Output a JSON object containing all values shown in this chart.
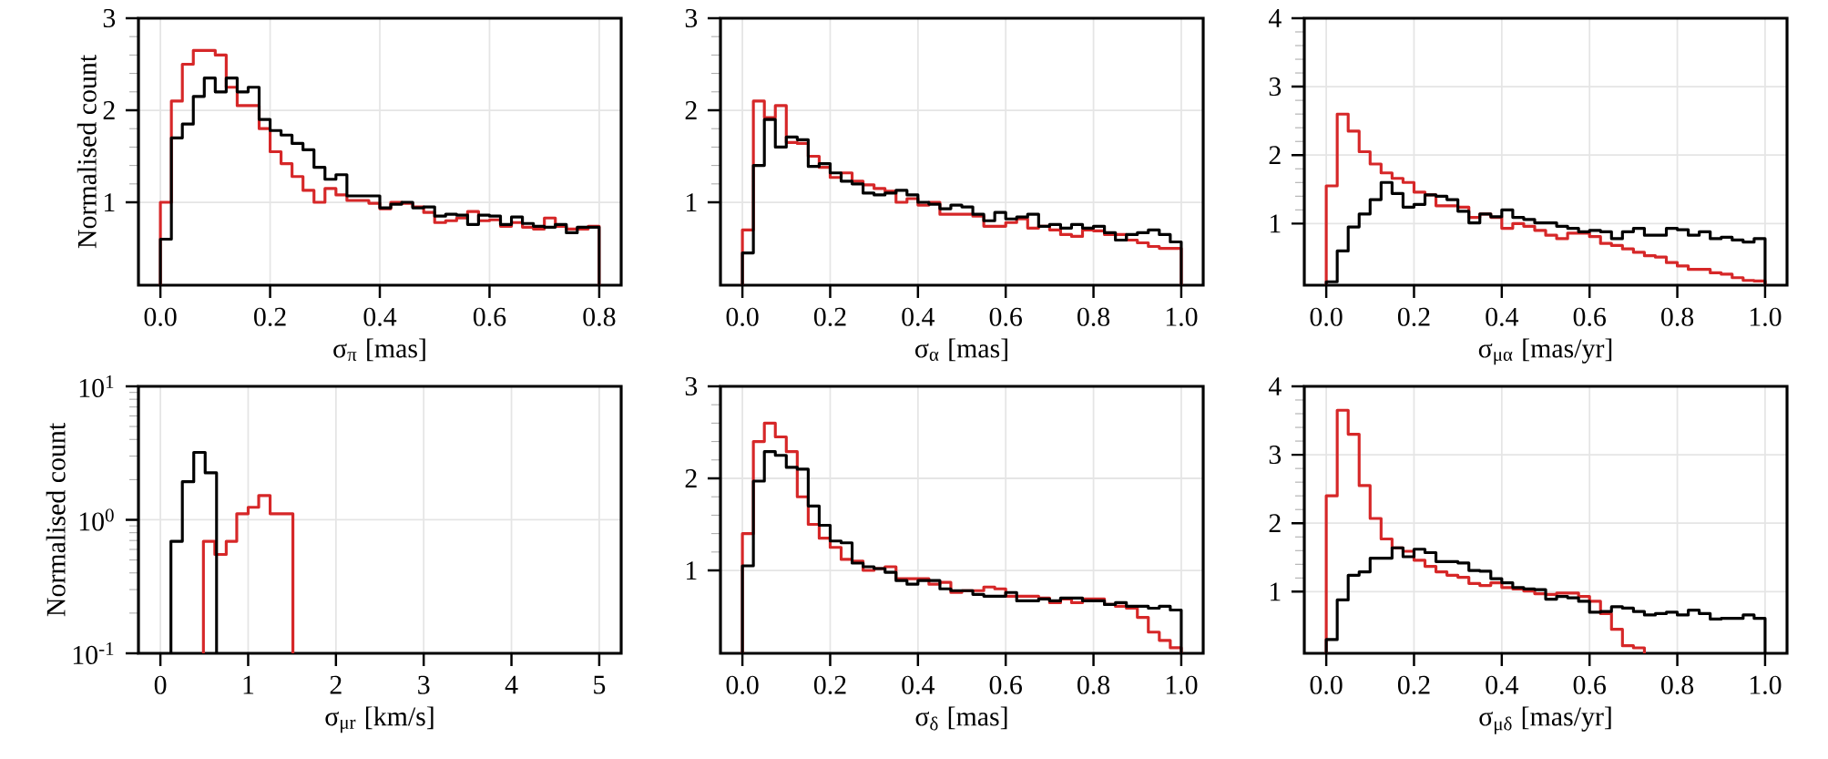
{
  "chart_data": [
    {
      "type": "histogram",
      "ylabel": "Normalised count",
      "xlabel": "σ$_{π}$ [mas]",
      "grid": true,
      "xlim": [
        -0.04,
        0.84
      ],
      "ylim": [
        0.1,
        3
      ],
      "xticks": [
        {
          "value": 0,
          "label": "0.0"
        },
        {
          "value": 0.2,
          "label": "0.2"
        },
        {
          "value": 0.4,
          "label": "0.4"
        },
        {
          "value": 0.6,
          "label": "0.6"
        },
        {
          "value": 0.8,
          "label": "0.8"
        }
      ],
      "yticks": [
        1,
        2,
        3
      ],
      "bins": [
        0,
        0.02,
        0.04,
        0.06,
        0.08,
        0.1,
        0.12,
        0.14,
        0.16,
        0.18,
        0.2,
        0.22,
        0.24,
        0.26,
        0.28,
        0.3,
        0.32,
        0.34,
        0.36,
        0.38,
        0.4,
        0.42,
        0.44,
        0.46,
        0.48,
        0.5,
        0.52,
        0.54,
        0.56,
        0.58,
        0.6,
        0.62,
        0.64,
        0.66,
        0.68,
        0.7,
        0.72,
        0.74,
        0.76,
        0.78,
        0.8
      ],
      "series": [
        {
          "color": "#d62728",
          "values": [
            1.0,
            2.1,
            2.5,
            2.65,
            2.65,
            2.6,
            2.25,
            2.05,
            2.05,
            1.8,
            1.55,
            1.42,
            1.28,
            1.13,
            1.0,
            1.15,
            1.08,
            1.02,
            1.02,
            0.99,
            0.93,
            1.0,
            0.99,
            0.95,
            0.89,
            0.78,
            0.8,
            0.83,
            0.9,
            0.8,
            0.81,
            0.74,
            0.78,
            0.73,
            0.71,
            0.83,
            0.74,
            0.71,
            0.71,
            0.74
          ]
        },
        {
          "color": "#000000",
          "values": [
            0.6,
            1.7,
            1.85,
            2.15,
            2.35,
            2.2,
            2.35,
            2.2,
            2.25,
            1.9,
            1.78,
            1.73,
            1.64,
            1.57,
            1.38,
            1.25,
            1.3,
            1.07,
            1.07,
            1.07,
            0.94,
            0.98,
            1.0,
            0.94,
            0.95,
            0.85,
            0.87,
            0.86,
            0.76,
            0.86,
            0.85,
            0.76,
            0.84,
            0.77,
            0.74,
            0.73,
            0.76,
            0.67,
            0.73,
            0.73
          ]
        }
      ]
    },
    {
      "type": "histogram",
      "xlabel": "σ$_{α}$ [mas]",
      "grid": true,
      "xlim": [
        -0.05,
        1.05
      ],
      "ylim": [
        0.1,
        3
      ],
      "xticks": [
        {
          "value": 0,
          "label": "0.0"
        },
        {
          "value": 0.2,
          "label": "0.2"
        },
        {
          "value": 0.4,
          "label": "0.4"
        },
        {
          "value": 0.6,
          "label": "0.6"
        },
        {
          "value": 0.8,
          "label": "0.8"
        },
        {
          "value": 1,
          "label": "1.0"
        }
      ],
      "yticks": [
        1,
        2,
        3
      ],
      "bins": [
        0,
        0.025,
        0.05,
        0.075,
        0.1,
        0.125,
        0.15,
        0.175,
        0.2,
        0.225,
        0.25,
        0.275,
        0.3,
        0.325,
        0.35,
        0.375,
        0.4,
        0.425,
        0.45,
        0.475,
        0.5,
        0.525,
        0.55,
        0.575,
        0.6,
        0.625,
        0.65,
        0.675,
        0.7,
        0.725,
        0.75,
        0.775,
        0.8,
        0.825,
        0.85,
        0.875,
        0.9,
        0.925,
        0.95,
        0.975,
        1
      ],
      "series": [
        {
          "color": "#d62728",
          "values": [
            0.7,
            2.1,
            1.92,
            2.05,
            1.65,
            1.64,
            1.5,
            1.38,
            1.27,
            1.32,
            1.23,
            1.19,
            1.15,
            1.12,
            1.0,
            1.04,
            0.97,
            1.0,
            0.87,
            0.87,
            0.87,
            0.85,
            0.74,
            0.74,
            0.78,
            0.82,
            0.72,
            0.74,
            0.7,
            0.65,
            0.63,
            0.7,
            0.69,
            0.65,
            0.65,
            0.59,
            0.56,
            0.52,
            0.5,
            0.5
          ]
        },
        {
          "color": "#000000",
          "values": [
            0.45,
            1.4,
            1.9,
            1.6,
            1.71,
            1.68,
            1.39,
            1.42,
            1.32,
            1.23,
            1.2,
            1.1,
            1.08,
            1.1,
            1.13,
            1.08,
            1.0,
            0.98,
            0.93,
            0.97,
            0.95,
            0.87,
            0.8,
            0.89,
            0.82,
            0.84,
            0.87,
            0.74,
            0.76,
            0.72,
            0.76,
            0.72,
            0.74,
            0.67,
            0.59,
            0.65,
            0.67,
            0.7,
            0.65,
            0.57
          ]
        }
      ]
    },
    {
      "type": "histogram",
      "xlabel": "σ$_{μα}$ [mas/yr]",
      "grid": true,
      "xlim": [
        -0.05,
        1.05
      ],
      "ylim": [
        0.1,
        4
      ],
      "xticks": [
        {
          "value": 0,
          "label": "0.0"
        },
        {
          "value": 0.2,
          "label": "0.2"
        },
        {
          "value": 0.4,
          "label": "0.4"
        },
        {
          "value": 0.6,
          "label": "0.6"
        },
        {
          "value": 0.8,
          "label": "0.8"
        },
        {
          "value": 1,
          "label": "1.0"
        }
      ],
      "yticks": [
        1,
        2,
        3,
        4
      ],
      "bins": [
        0,
        0.025,
        0.05,
        0.075,
        0.1,
        0.125,
        0.15,
        0.175,
        0.2,
        0.225,
        0.25,
        0.275,
        0.3,
        0.325,
        0.35,
        0.375,
        0.4,
        0.425,
        0.45,
        0.475,
        0.5,
        0.525,
        0.55,
        0.575,
        0.6,
        0.625,
        0.65,
        0.675,
        0.7,
        0.725,
        0.75,
        0.775,
        0.8,
        0.825,
        0.85,
        0.875,
        0.9,
        0.925,
        0.95,
        0.975,
        1
      ],
      "series": [
        {
          "color": "#d62728",
          "values": [
            1.55,
            2.6,
            2.35,
            2.05,
            1.87,
            1.74,
            1.66,
            1.6,
            1.46,
            1.42,
            1.26,
            1.26,
            1.24,
            1.09,
            1.14,
            1.09,
            0.93,
            1.0,
            0.96,
            0.9,
            0.83,
            0.78,
            0.86,
            0.86,
            0.81,
            0.71,
            0.68,
            0.63,
            0.58,
            0.53,
            0.51,
            0.43,
            0.38,
            0.33,
            0.33,
            0.28,
            0.26,
            0.21,
            0.17,
            0.16
          ]
        },
        {
          "color": "#000000",
          "values": [
            0.15,
            0.6,
            0.95,
            1.14,
            1.35,
            1.6,
            1.44,
            1.24,
            1.28,
            1.42,
            1.4,
            1.35,
            1.18,
            1.01,
            1.14,
            1.1,
            1.2,
            1.09,
            1.06,
            1.01,
            1.01,
            0.96,
            0.93,
            0.88,
            0.9,
            0.88,
            0.78,
            0.88,
            0.93,
            0.83,
            0.83,
            0.93,
            0.91,
            0.83,
            0.88,
            0.78,
            0.8,
            0.76,
            0.73,
            0.78
          ]
        }
      ]
    },
    {
      "type": "histogram",
      "ylabel": "Normalised count",
      "xlabel": "σ$_{μr}$ [km/s]",
      "grid": true,
      "log": "y",
      "xlim": [
        -0.25,
        5.25
      ],
      "ylim": [
        0.1,
        10
      ],
      "xticks": [
        {
          "value": 0,
          "label": "0"
        },
        {
          "value": 1,
          "label": "1"
        },
        {
          "value": 2,
          "label": "2"
        },
        {
          "value": 3,
          "label": "3"
        },
        {
          "value": 4,
          "label": "4"
        },
        {
          "value": 5,
          "label": "5"
        }
      ],
      "yticks": [
        {
          "value": 0.1,
          "label": "10$^{-1}$"
        },
        {
          "value": 1,
          "label": "10$^{0}$"
        },
        {
          "value": 10,
          "label": "10$^{1}$"
        }
      ],
      "bins": [
        0.12,
        0.25,
        0.38,
        0.51,
        0.64
      ],
      "series": [
        {
          "color": "#d62728",
          "bins": [
            0.49,
            0.62,
            0.75,
            0.87,
            1.0,
            1.12,
            1.25,
            1.38,
            1.51
          ],
          "values": [
            0.69,
            0.55,
            0.69,
            1.11,
            1.24,
            1.52,
            1.11,
            1.11
          ]
        },
        {
          "color": "#000000",
          "values": [
            0.69,
            1.93,
            3.2,
            2.25
          ]
        }
      ]
    },
    {
      "type": "histogram",
      "xlabel": "σ$_{δ}$ [mas]",
      "grid": true,
      "xlim": [
        -0.05,
        1.05
      ],
      "ylim": [
        0.1,
        3
      ],
      "xticks": [
        {
          "value": 0,
          "label": "0.0"
        },
        {
          "value": 0.2,
          "label": "0.2"
        },
        {
          "value": 0.4,
          "label": "0.4"
        },
        {
          "value": 0.6,
          "label": "0.6"
        },
        {
          "value": 0.8,
          "label": "0.8"
        },
        {
          "value": 1,
          "label": "1.0"
        }
      ],
      "yticks": [
        1,
        2,
        3
      ],
      "bins": [
        0,
        0.025,
        0.05,
        0.075,
        0.1,
        0.125,
        0.15,
        0.175,
        0.2,
        0.225,
        0.25,
        0.275,
        0.3,
        0.325,
        0.35,
        0.375,
        0.4,
        0.425,
        0.45,
        0.475,
        0.5,
        0.525,
        0.55,
        0.575,
        0.6,
        0.625,
        0.65,
        0.675,
        0.7,
        0.725,
        0.75,
        0.775,
        0.8,
        0.825,
        0.85,
        0.875,
        0.9,
        0.925,
        0.95,
        0.975,
        1
      ],
      "series": [
        {
          "color": "#d62728",
          "values": [
            1.4,
            2.4,
            2.6,
            2.45,
            2.29,
            1.8,
            1.5,
            1.35,
            1.25,
            1.12,
            1.1,
            1.0,
            1.02,
            1.04,
            0.91,
            0.91,
            0.91,
            0.85,
            0.87,
            0.76,
            0.78,
            0.78,
            0.82,
            0.8,
            0.72,
            0.72,
            0.72,
            0.7,
            0.65,
            0.69,
            0.65,
            0.69,
            0.69,
            0.63,
            0.61,
            0.59,
            0.49,
            0.33,
            0.24,
            0.16
          ]
        },
        {
          "color": "#000000",
          "values": [
            1.05,
            1.97,
            2.29,
            2.25,
            2.12,
            2.1,
            1.7,
            1.49,
            1.32,
            1.3,
            1.08,
            1.04,
            1.02,
            0.98,
            0.89,
            0.85,
            0.89,
            0.89,
            0.8,
            0.78,
            0.78,
            0.74,
            0.72,
            0.72,
            0.76,
            0.67,
            0.67,
            0.69,
            0.67,
            0.7,
            0.7,
            0.67,
            0.67,
            0.63,
            0.65,
            0.61,
            0.61,
            0.59,
            0.61,
            0.57
          ]
        }
      ]
    },
    {
      "type": "histogram",
      "xlabel": "σ$_{μδ}$ [mas/yr]",
      "grid": true,
      "xlim": [
        -0.05,
        1.05
      ],
      "ylim": [
        0.1,
        4
      ],
      "xticks": [
        {
          "value": 0,
          "label": "0.0"
        },
        {
          "value": 0.2,
          "label": "0.2"
        },
        {
          "value": 0.4,
          "label": "0.4"
        },
        {
          "value": 0.6,
          "label": "0.6"
        },
        {
          "value": 0.8,
          "label": "0.8"
        },
        {
          "value": 1,
          "label": "1.0"
        }
      ],
      "yticks": [
        1,
        2,
        3,
        4
      ],
      "bins": [
        0,
        0.025,
        0.05,
        0.075,
        0.1,
        0.125,
        0.15,
        0.175,
        0.2,
        0.225,
        0.25,
        0.275,
        0.3,
        0.325,
        0.35,
        0.375,
        0.4,
        0.425,
        0.45,
        0.475,
        0.5,
        0.525,
        0.55,
        0.575,
        0.6,
        0.625,
        0.65,
        0.675,
        0.7,
        0.725,
        0.75,
        0.775,
        0.8,
        0.825,
        0.85,
        0.875,
        0.9,
        0.925,
        0.95,
        0.975,
        1
      ],
      "series": [
        {
          "color": "#d62728",
          "bins": [
            0,
            0.025,
            0.05,
            0.075,
            0.1,
            0.125,
            0.15,
            0.175,
            0.2,
            0.225,
            0.25,
            0.275,
            0.3,
            0.325,
            0.35,
            0.375,
            0.4,
            0.425,
            0.45,
            0.475,
            0.5,
            0.525,
            0.55,
            0.575,
            0.6,
            0.625,
            0.65,
            0.675,
            0.7,
            0.725
          ],
          "values": [
            2.4,
            3.65,
            3.3,
            2.55,
            2.07,
            1.77,
            1.64,
            1.59,
            1.46,
            1.37,
            1.29,
            1.24,
            1.21,
            1.12,
            1.09,
            1.13,
            1.06,
            1.04,
            1.01,
            0.97,
            0.96,
            0.98,
            0.98,
            0.93,
            0.86,
            0.68,
            0.45,
            0.21,
            0.18
          ]
        },
        {
          "color": "#000000",
          "values": [
            0.3,
            0.88,
            1.24,
            1.29,
            1.49,
            1.49,
            1.64,
            1.51,
            1.62,
            1.57,
            1.44,
            1.44,
            1.42,
            1.31,
            1.3,
            1.19,
            1.13,
            1.06,
            1.04,
            1.03,
            0.89,
            0.93,
            0.91,
            0.86,
            0.7,
            0.71,
            0.78,
            0.76,
            0.71,
            0.66,
            0.68,
            0.7,
            0.66,
            0.73,
            0.68,
            0.6,
            0.61,
            0.61,
            0.66,
            0.61
          ]
        }
      ]
    }
  ]
}
